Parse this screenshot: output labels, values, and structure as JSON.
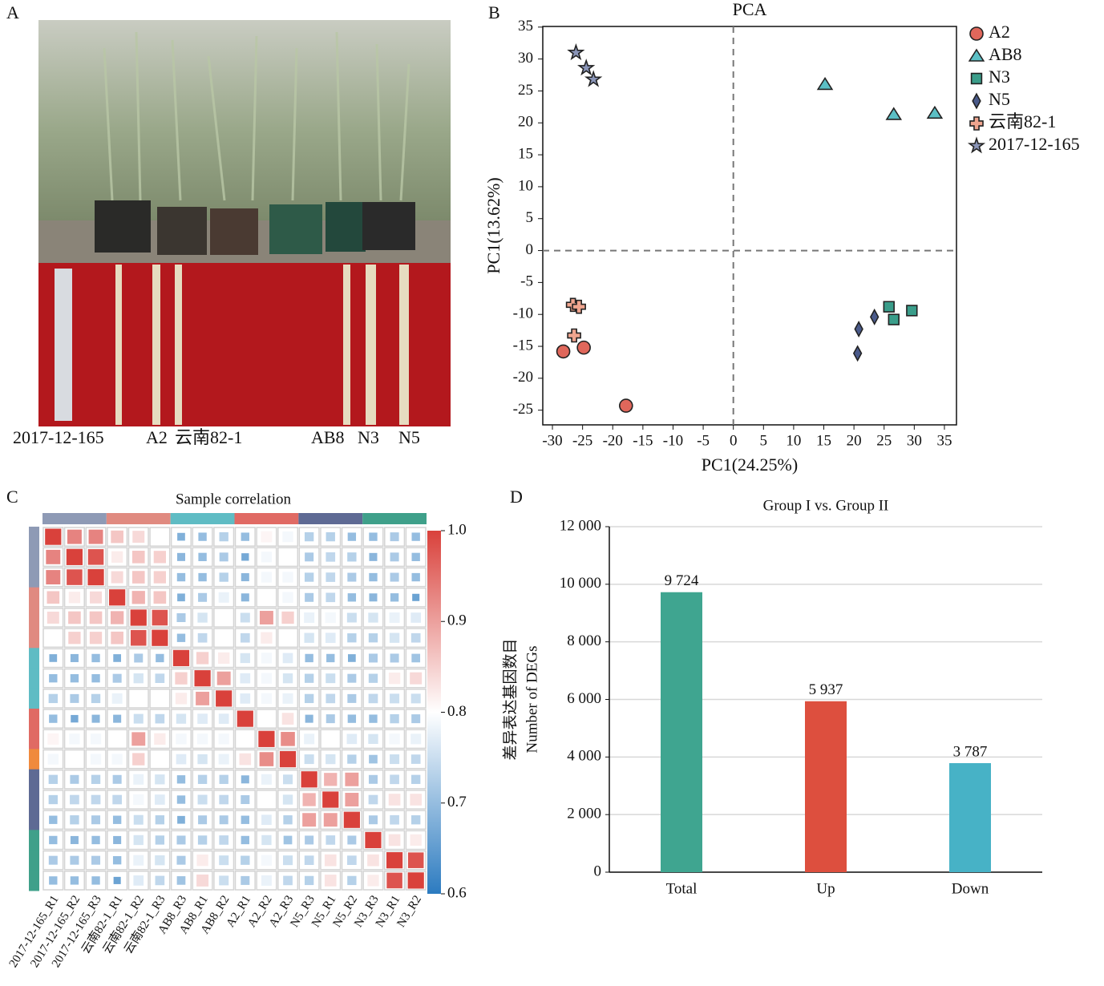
{
  "panel_labels": [
    "A",
    "B",
    "C",
    "D"
  ],
  "photo": {
    "labels": [
      "2017-12-165",
      "A2",
      "云南82-1",
      "AB8",
      "N3",
      "N5"
    ]
  },
  "chart_data": [
    {
      "type": "scatter",
      "title": "PCA",
      "xlabel": "PC1(24.25%)",
      "ylabel": "PC1(13.62%)",
      "xlim": [
        -31.6,
        37
      ],
      "ylim": [
        -27.3,
        35.1
      ],
      "xticks": [
        -30,
        -25,
        -20,
        -15,
        -10,
        -5,
        0,
        5,
        10,
        15,
        20,
        25,
        30,
        35
      ],
      "yticks": [
        -25,
        -20,
        -15,
        -10,
        -5,
        0,
        5,
        10,
        15,
        20,
        25,
        30,
        35
      ],
      "zero_lines": true,
      "legend": "outside-right",
      "series": [
        {
          "name": "A2",
          "color": "#e0675b",
          "marker": "circle",
          "x": [
            -28.2,
            -24.8,
            -17.8
          ],
          "values": [
            -15.8,
            -15.2,
            -24.3
          ]
        },
        {
          "name": "AB8",
          "color": "#5bbfc5",
          "marker": "triangle",
          "x": [
            15.2,
            26.6,
            33.4
          ],
          "values": [
            26.0,
            21.3,
            21.5
          ]
        },
        {
          "name": "N3",
          "color": "#3a9d8a",
          "marker": "square",
          "x": [
            25.8,
            26.6,
            29.6
          ],
          "values": [
            -8.8,
            -10.8,
            -9.4
          ]
        },
        {
          "name": "N5",
          "color": "#4a5a8a",
          "marker": "diamond",
          "x": [
            20.8,
            23.4,
            20.6
          ],
          "values": [
            -12.3,
            -10.4,
            -16.1
          ]
        },
        {
          "name": "云南82-1",
          "color": "#f0a58f",
          "marker": "plus",
          "x": [
            -26.6,
            -25.6,
            -26.4
          ],
          "values": [
            -8.5,
            -8.8,
            -13.3
          ]
        },
        {
          "name": "2017-12-165",
          "color": "#8a95b8",
          "marker": "star",
          "x": [
            -26.1,
            -24.4,
            -23.2
          ],
          "values": [
            31.0,
            28.6,
            26.8
          ]
        }
      ]
    },
    {
      "type": "heatmap",
      "title": "Sample correlation",
      "categories": [
        "2017-12-165_R1",
        "2017-12-165_R2",
        "2017-12-165_R3",
        "云南82-1_R1",
        "云南82-1_R2",
        "云南82-1_R3",
        "AB8_R3",
        "AB8_R1",
        "AB8_R2",
        "A2_R1",
        "A2_R2",
        "A2_R3",
        "N5_R3",
        "N5_R1",
        "N5_R2",
        "N3_R3",
        "N3_R1",
        "N3_R2"
      ],
      "column_group_colors": [
        "#8e9ab5",
        "#e08a80",
        "#5fbcc4",
        "#e06a64",
        "#5e6a94",
        "#3fa08a"
      ],
      "row_colors": [
        "#8e9ab5",
        "#8e9ab5",
        "#8e9ab5",
        "#e08a80",
        "#e08a80",
        "#e08a80",
        "#5fbcc4",
        "#5fbcc4",
        "#5fbcc4",
        "#e06a64",
        "#e06a64",
        "#f08a3c",
        "#5e6a94",
        "#5e6a94",
        "#5e6a94",
        "#3fa08a",
        "#3fa08a",
        "#3fa08a"
      ],
      "colormap": [
        "#2c7bc0",
        "#ffffff",
        "#d9413b"
      ],
      "zlim": [
        0.6,
        1.0
      ],
      "zticks": [
        {
          "value": 1.0,
          "label": "1.0"
        },
        0.9,
        0.8,
        0.7,
        0.6
      ],
      "matrix": [
        [
          1,
          0.93,
          0.93,
          0.86,
          0.84,
          0.8,
          0.68,
          0.7,
          0.73,
          0.7,
          0.81,
          0.79,
          0.73,
          0.73,
          0.7,
          0.7,
          0.72,
          0.7
        ],
        [
          0.93,
          1,
          0.98,
          0.82,
          0.86,
          0.85,
          0.69,
          0.7,
          0.72,
          0.67,
          0.79,
          0.8,
          0.72,
          0.74,
          0.73,
          0.69,
          0.72,
          0.7
        ],
        [
          0.93,
          0.98,
          1,
          0.84,
          0.86,
          0.85,
          0.7,
          0.7,
          0.73,
          0.69,
          0.79,
          0.79,
          0.73,
          0.74,
          0.72,
          0.7,
          0.72,
          0.7
        ],
        [
          0.86,
          0.82,
          0.84,
          1,
          0.88,
          0.86,
          0.68,
          0.72,
          0.78,
          0.69,
          0.8,
          0.79,
          0.72,
          0.74,
          0.7,
          0.69,
          0.7,
          0.66
        ],
        [
          0.84,
          0.86,
          0.86,
          0.88,
          1,
          0.98,
          0.72,
          0.76,
          0.8,
          0.75,
          0.9,
          0.85,
          0.78,
          0.79,
          0.75,
          0.76,
          0.78,
          0.77
        ],
        [
          0.8,
          0.85,
          0.85,
          0.86,
          0.98,
          1,
          0.7,
          0.74,
          0.8,
          0.74,
          0.82,
          0.8,
          0.76,
          0.77,
          0.73,
          0.73,
          0.76,
          0.74
        ],
        [
          0.68,
          0.69,
          0.7,
          0.68,
          0.72,
          0.7,
          1,
          0.85,
          0.82,
          0.76,
          0.79,
          0.77,
          0.7,
          0.7,
          0.68,
          0.72,
          0.72,
          0.71
        ],
        [
          0.7,
          0.7,
          0.7,
          0.72,
          0.76,
          0.74,
          0.85,
          1,
          0.9,
          0.77,
          0.79,
          0.76,
          0.73,
          0.75,
          0.72,
          0.73,
          0.82,
          0.84
        ],
        [
          0.73,
          0.72,
          0.73,
          0.78,
          0.8,
          0.8,
          0.82,
          0.9,
          1,
          0.77,
          0.79,
          0.78,
          0.73,
          0.74,
          0.72,
          0.74,
          0.75,
          0.75
        ],
        [
          0.7,
          0.67,
          0.69,
          0.69,
          0.75,
          0.74,
          0.76,
          0.77,
          0.77,
          1,
          0.8,
          0.83,
          0.69,
          0.72,
          0.7,
          0.7,
          0.73,
          0.72
        ],
        [
          0.81,
          0.79,
          0.79,
          0.8,
          0.9,
          0.82,
          0.79,
          0.79,
          0.79,
          0.8,
          1,
          0.92,
          0.78,
          0.8,
          0.77,
          0.76,
          0.79,
          0.78
        ],
        [
          0.79,
          0.8,
          0.79,
          0.79,
          0.85,
          0.8,
          0.77,
          0.76,
          0.78,
          0.83,
          0.92,
          1,
          0.75,
          0.76,
          0.73,
          0.71,
          0.75,
          0.74
        ],
        [
          0.73,
          0.72,
          0.73,
          0.72,
          0.78,
          0.76,
          0.7,
          0.73,
          0.73,
          0.69,
          0.78,
          0.75,
          1,
          0.88,
          0.9,
          0.72,
          0.74,
          0.73
        ],
        [
          0.73,
          0.74,
          0.74,
          0.74,
          0.79,
          0.77,
          0.7,
          0.75,
          0.74,
          0.72,
          0.8,
          0.76,
          0.88,
          1,
          0.9,
          0.74,
          0.83,
          0.83
        ],
        [
          0.7,
          0.73,
          0.72,
          0.7,
          0.75,
          0.73,
          0.68,
          0.72,
          0.72,
          0.7,
          0.77,
          0.73,
          0.9,
          0.9,
          1,
          0.72,
          0.74,
          0.73
        ],
        [
          0.7,
          0.69,
          0.7,
          0.69,
          0.76,
          0.73,
          0.72,
          0.73,
          0.74,
          0.7,
          0.76,
          0.71,
          0.72,
          0.74,
          0.72,
          1,
          0.83,
          0.82
        ],
        [
          0.72,
          0.72,
          0.72,
          0.7,
          0.78,
          0.76,
          0.72,
          0.82,
          0.75,
          0.73,
          0.79,
          0.75,
          0.74,
          0.83,
          0.74,
          0.83,
          1,
          0.98
        ],
        [
          0.7,
          0.7,
          0.7,
          0.66,
          0.77,
          0.74,
          0.71,
          0.84,
          0.75,
          0.72,
          0.78,
          0.74,
          0.73,
          0.83,
          0.73,
          0.82,
          0.98,
          1
        ]
      ]
    },
    {
      "type": "bar",
      "title": "Group I vs. Group II",
      "ylabel": [
        "差异表达基因数目",
        "Number of DEGs"
      ],
      "categories": [
        "Total",
        "Up",
        "Down"
      ],
      "values": [
        9724,
        5937,
        3787
      ],
      "value_labels": [
        "9 724",
        "5 937",
        "3 787"
      ],
      "colors": [
        "#3fa590",
        "#dd4f3e",
        "#47b2c6"
      ],
      "ylim": [
        0,
        12000
      ],
      "yticks": [
        0,
        {
          "value": 2000,
          "label": "2 000"
        },
        {
          "value": 4000,
          "label": "4 000"
        },
        {
          "value": 6000,
          "label": "6 000"
        },
        {
          "value": 8000,
          "label": "8 000"
        },
        {
          "value": 10000,
          "label": "10 000"
        },
        {
          "value": 12000,
          "label": "12 000"
        }
      ],
      "grid": true
    }
  ]
}
